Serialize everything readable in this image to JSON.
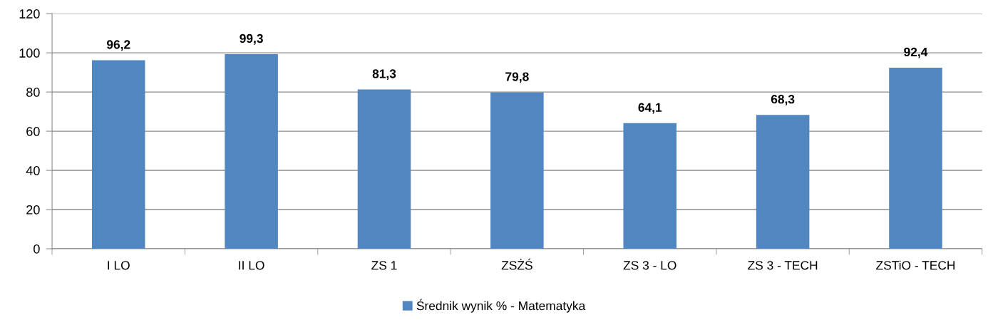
{
  "chart_data": {
    "type": "bar",
    "categories": [
      "I LO",
      "II LO",
      "ZS 1",
      "ZSŻŚ",
      "ZS 3 - LO",
      "ZS 3 - TECH",
      "ZSTiO - TECH"
    ],
    "series": [
      {
        "name": "Średnik wynik % - Matematyka",
        "color": "#5286c0",
        "values": [
          96.2,
          99.3,
          81.3,
          79.8,
          64.1,
          68.3,
          92.4
        ],
        "value_labels": [
          "96,2",
          "99,3",
          "81,3",
          "79,8",
          "64,1",
          "68,3",
          "92,4"
        ]
      }
    ],
    "ylim": [
      0,
      120
    ],
    "yticks": [
      0,
      20,
      40,
      60,
      80,
      100,
      120
    ],
    "grid": "y",
    "legend": "bottom"
  }
}
